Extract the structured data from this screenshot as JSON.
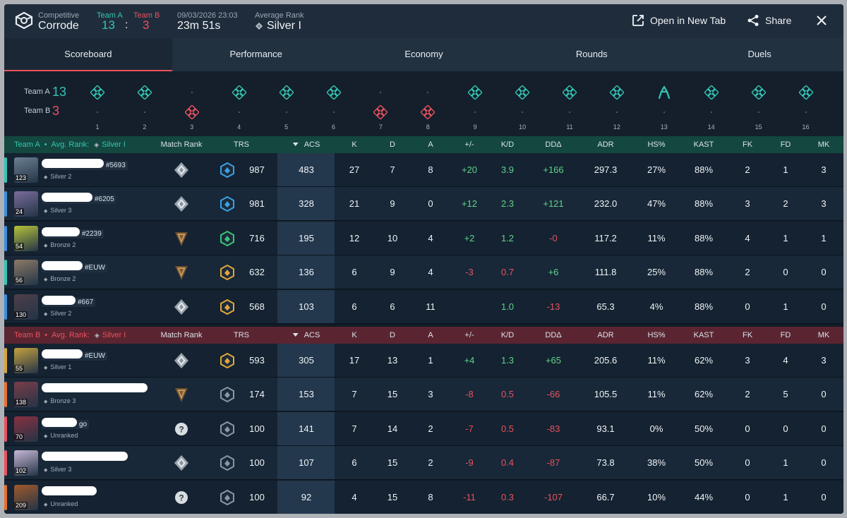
{
  "header": {
    "mode_label": "Competitive",
    "map": "Corrode",
    "team_a_label": "Team A",
    "team_a_score": "13",
    "score_sep": ":",
    "team_b_label": "Team B",
    "team_b_score": "3",
    "datetime": "09/03/2026 23:03",
    "duration": "23m 51s",
    "avg_rank_label": "Average Rank",
    "avg_rank": "Silver I",
    "open_new_tab": "Open in New Tab",
    "share": "Share"
  },
  "tabs": [
    "Scoreboard",
    "Performance",
    "Economy",
    "Rounds",
    "Duels"
  ],
  "active_tab": "Scoreboard",
  "timeline": {
    "team_a_label": "Team A",
    "team_a_score": "13",
    "team_b_label": "Team B",
    "team_b_score": "3",
    "winners": [
      "A",
      "A",
      "B",
      "A",
      "A",
      "A",
      "B",
      "B",
      "A",
      "A",
      "A",
      "A",
      "A",
      "A",
      "A",
      "A"
    ],
    "round_13_icon": "defuse-icon"
  },
  "columns": [
    "Match Rank",
    "TRS",
    "ACS",
    "K",
    "D",
    "A",
    "+/-",
    "K/D",
    "DDΔ",
    "ADR",
    "HS%",
    "KAST",
    "FK",
    "FD",
    "MK"
  ],
  "team_a": {
    "name": "Team A",
    "avg_rank_label": "Avg. Rank:",
    "avg_rank": "Silver I",
    "color": "#35c5b4",
    "players": [
      {
        "level": "123",
        "tag": "#5693",
        "redact_w": 88,
        "rank": "Silver 2",
        "bar": "#35c5b4",
        "avatar": "#6b7f92",
        "match_rank": "silver",
        "trs_tier": "blue",
        "trs": "987",
        "acs": "483",
        "k": "27",
        "d": "7",
        "a": "8",
        "pm": "+20",
        "kd": "3.9",
        "dd": "+166",
        "adr": "297.3",
        "hs": "27%",
        "kast": "88%",
        "fk": "2",
        "fd": "1",
        "mk": "3"
      },
      {
        "level": "24",
        "tag": "#6205",
        "redact_w": 72,
        "rank": "Silver 3",
        "bar": "#3b8ee0",
        "avatar": "#7a6c9b",
        "match_rank": "silver",
        "trs_tier": "blue",
        "trs": "981",
        "acs": "328",
        "k": "21",
        "d": "9",
        "a": "0",
        "pm": "+12",
        "kd": "2.3",
        "dd": "+121",
        "adr": "232.0",
        "hs": "47%",
        "kast": "88%",
        "fk": "3",
        "fd": "2",
        "mk": "3"
      },
      {
        "level": "54",
        "tag": "#2239",
        "redact_w": 54,
        "rank": "Bronze 2",
        "bar": "#3b8ee0",
        "avatar": "#b6c23a",
        "match_rank": "bronze",
        "trs_tier": "green",
        "trs": "716",
        "acs": "195",
        "k": "12",
        "d": "10",
        "a": "4",
        "pm": "+2",
        "kd": "1.2",
        "dd": "-0",
        "adr": "117.2",
        "hs": "11%",
        "kast": "88%",
        "fk": "4",
        "fd": "1",
        "mk": "1"
      },
      {
        "level": "56",
        "tag": "#EUW",
        "redact_w": 58,
        "rank": "Bronze 2",
        "bar": "#35c5b4",
        "avatar": "#8c7a66",
        "match_rank": "bronze",
        "trs_tier": "gold",
        "trs": "632",
        "acs": "136",
        "k": "6",
        "d": "9",
        "a": "4",
        "pm": "-3",
        "kd": "0.7",
        "dd": "+6",
        "adr": "111.8",
        "hs": "25%",
        "kast": "88%",
        "fk": "2",
        "fd": "0",
        "mk": "0"
      },
      {
        "level": "130",
        "tag": "#667",
        "redact_w": 48,
        "rank": "Silver 2",
        "bar": "#3b8ee0",
        "avatar": "#4d3f4a",
        "match_rank": "silver",
        "trs_tier": "gold",
        "trs": "568",
        "acs": "103",
        "k": "6",
        "d": "6",
        "a": "11",
        "pm": "",
        "kd": "1.0",
        "dd": "-13",
        "adr": "65.3",
        "hs": "4%",
        "kast": "88%",
        "fk": "0",
        "fd": "1",
        "mk": "0"
      }
    ]
  },
  "team_b": {
    "name": "Team B",
    "avg_rank_label": "Avg. Rank:",
    "avg_rank": "Silver I",
    "color": "#e8525e",
    "players": [
      {
        "level": "55",
        "tag": "#EUW",
        "redact_w": 58,
        "rank": "Silver 1",
        "bar": "#d8a43a",
        "avatar": "#c4a03e",
        "match_rank": "silver",
        "trs_tier": "gold",
        "trs": "593",
        "acs": "305",
        "k": "17",
        "d": "13",
        "a": "1",
        "pm": "+4",
        "kd": "1.3",
        "dd": "+65",
        "adr": "205.6",
        "hs": "11%",
        "kast": "62%",
        "fk": "3",
        "fd": "4",
        "mk": "3"
      },
      {
        "level": "138",
        "tag": "",
        "redact_w": 150,
        "rank": "Bronze 3",
        "bar": "#e8702e",
        "avatar": "#7a3d4a",
        "match_rank": "bronze",
        "trs_tier": "grey",
        "trs": "174",
        "acs": "153",
        "k": "7",
        "d": "15",
        "a": "3",
        "pm": "-8",
        "kd": "0.5",
        "dd": "-66",
        "adr": "105.5",
        "hs": "11%",
        "kast": "62%",
        "fk": "2",
        "fd": "5",
        "mk": "0"
      },
      {
        "level": "70",
        "tag": "go",
        "redact_w": 50,
        "rank": "Unranked",
        "bar": "#e8525e",
        "avatar": "#8a3040",
        "match_rank": "unranked",
        "trs_tier": "grey",
        "trs": "100",
        "acs": "141",
        "k": "7",
        "d": "14",
        "a": "2",
        "pm": "-7",
        "kd": "0.5",
        "dd": "-83",
        "adr": "93.1",
        "hs": "0%",
        "kast": "50%",
        "fk": "0",
        "fd": "0",
        "mk": "0"
      },
      {
        "level": "102",
        "tag": "",
        "redact_w": 122,
        "rank": "Silver 3",
        "bar": "#e8525e",
        "avatar": "#c7b7d6",
        "match_rank": "silver",
        "trs_tier": "grey",
        "trs": "100",
        "acs": "107",
        "k": "6",
        "d": "15",
        "a": "2",
        "pm": "-9",
        "kd": "0.4",
        "dd": "-87",
        "adr": "73.8",
        "hs": "38%",
        "kast": "50%",
        "fk": "0",
        "fd": "1",
        "mk": "0"
      },
      {
        "level": "209",
        "tag": "",
        "redact_w": 78,
        "rank": "Unranked",
        "bar": "#e8702e",
        "avatar": "#a05a2c",
        "match_rank": "unranked",
        "trs_tier": "grey",
        "trs": "100",
        "acs": "92",
        "k": "4",
        "d": "15",
        "a": "8",
        "pm": "-11",
        "kd": "0.3",
        "dd": "-107",
        "adr": "66.7",
        "hs": "10%",
        "kast": "44%",
        "fk": "0",
        "fd": "1",
        "mk": "0"
      }
    ]
  }
}
